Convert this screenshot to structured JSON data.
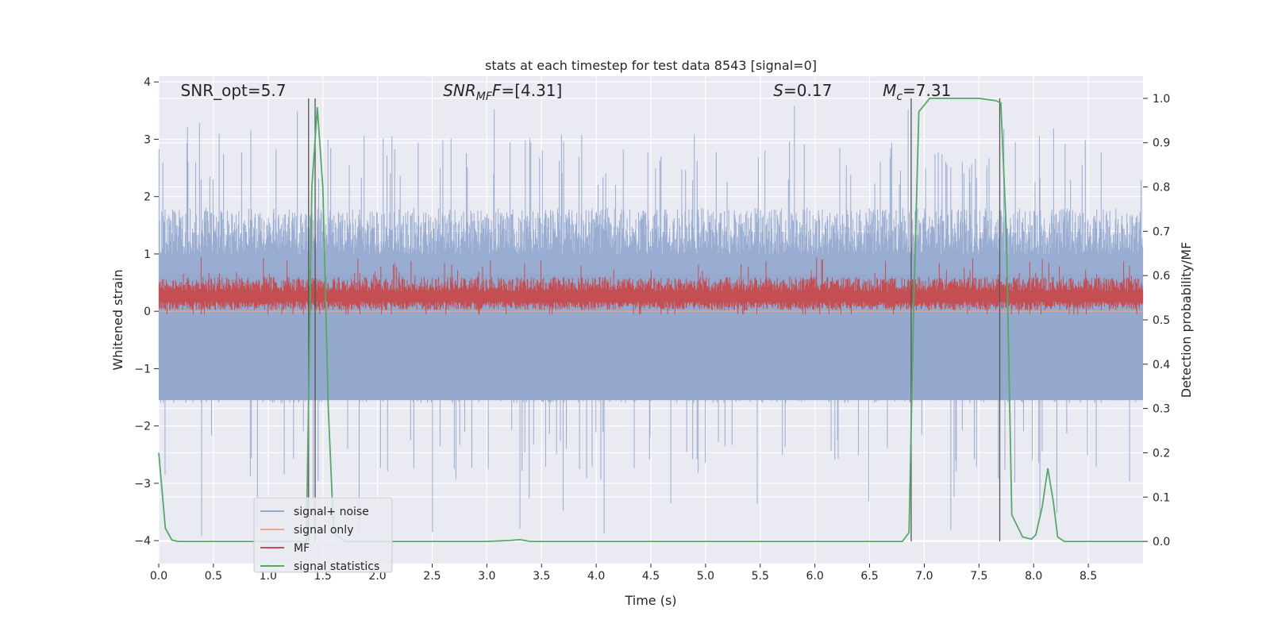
{
  "chart_data": {
    "type": "line",
    "title": "stats at each timestep for test data 8543 [signal=0]",
    "xlabel": "Time (s)",
    "ylabel_left": "Whitened strain",
    "ylabel_right": "Detection probability/MF",
    "xlim": [
      0,
      9.0
    ],
    "ylim_left": [
      -4.4,
      4.1
    ],
    "ylim_right": [
      -0.05,
      1.05
    ],
    "x_ticks": [
      "0.0",
      "0.5",
      "1.0",
      "1.5",
      "2.0",
      "2.5",
      "3.0",
      "3.5",
      "4.0",
      "4.5",
      "5.0",
      "5.5",
      "6.0",
      "6.5",
      "7.0",
      "7.5",
      "8.0",
      "8.5"
    ],
    "y_ticks_left": [
      "4",
      "3",
      "2",
      "1",
      "0",
      "−1",
      "−2",
      "−3",
      "−4"
    ],
    "y_ticks_right": [
      "1.0",
      "0.9",
      "0.8",
      "0.7",
      "0.6",
      "0.5",
      "0.4",
      "0.3",
      "0.2",
      "0.1",
      "0.0"
    ],
    "grid": true,
    "legend_position": "lower-left",
    "annotations": [
      {
        "prefix": "SNR_opt=5.7",
        "x": 0.2
      },
      {
        "prefix": "SNR",
        "sub": "MF",
        "italic_tail": "F",
        "suffix": "=[4.31]",
        "x": 2.6
      },
      {
        "prefix": "S",
        "suffix": "=0.17",
        "x": 5.62
      },
      {
        "prefix": "M",
        "sub": "c",
        "suffix": "=7.31",
        "x": 6.62
      }
    ],
    "vertical_markers": [
      1.37,
      1.43,
      6.88,
      7.69
    ],
    "series": [
      {
        "name": "signal+ noise",
        "color": "#95a9cf",
        "axis": "left",
        "style": "noise",
        "typical_range": [
          -1.6,
          1.8
        ],
        "extreme_range": [
          -4.0,
          3.65
        ]
      },
      {
        "name": "signal only",
        "color": "#e8a990",
        "axis": "left",
        "style": "flat",
        "values": [
          0.0
        ]
      },
      {
        "name": "MF",
        "color": "#c44e52",
        "axis": "left",
        "style": "band",
        "typical_range": [
          0.0,
          0.6
        ],
        "extreme_range": [
          -0.05,
          0.95
        ]
      },
      {
        "name": "signal statistics",
        "color": "#55a868",
        "axis": "right",
        "x": [
          0.0,
          0.06,
          0.12,
          0.18,
          0.3,
          1.0,
          1.2,
          1.3,
          1.35,
          1.4,
          1.45,
          1.5,
          1.55,
          1.6,
          1.7,
          2.0,
          3.0,
          3.2,
          3.3,
          3.4,
          4.0,
          5.0,
          6.0,
          6.8,
          6.86,
          6.9,
          6.95,
          7.05,
          7.5,
          7.65,
          7.7,
          7.75,
          7.8,
          7.9,
          7.98,
          8.02,
          8.08,
          8.13,
          8.18,
          8.22,
          8.28,
          8.35,
          8.5,
          9.0
        ],
        "values": [
          0.2,
          0.03,
          0.003,
          0.0,
          0.0,
          0.0,
          0.0,
          0.0,
          0.0,
          0.8,
          0.98,
          0.8,
          0.3,
          0.02,
          0.0,
          0.0,
          0.0,
          0.002,
          0.004,
          0.0,
          0.0,
          0.0,
          0.0,
          0.0,
          0.02,
          0.5,
          0.97,
          1.0,
          1.0,
          0.995,
          0.99,
          0.7,
          0.06,
          0.01,
          0.005,
          0.015,
          0.08,
          0.165,
          0.09,
          0.01,
          0.0,
          0.0,
          0.0,
          0.0
        ]
      }
    ]
  }
}
